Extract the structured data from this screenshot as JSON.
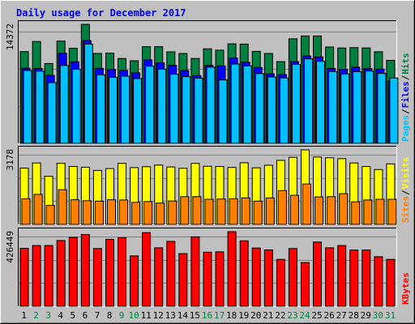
{
  "chart_data": {
    "title": "Daily usage for December 2017",
    "days": [
      "1",
      "2",
      "3",
      "4",
      "5",
      "6",
      "7",
      "8",
      "9",
      "10",
      "11",
      "12",
      "13",
      "14",
      "15",
      "16",
      "17",
      "18",
      "19",
      "20",
      "21",
      "22",
      "23",
      "24",
      "25",
      "26",
      "27",
      "28",
      "29",
      "30",
      "31"
    ],
    "weekend_days": [
      "2",
      "3",
      "9",
      "10",
      "16",
      "17",
      "23",
      "24",
      "30",
      "31"
    ],
    "panels": [
      {
        "type": "bar",
        "name": "hits-files-pages",
        "ymax_label": "14372",
        "ylim": [
          0,
          14372
        ],
        "legend": [
          {
            "label": "Pages",
            "color": "#00c0ff"
          },
          {
            "label": "/",
            "color": "#000000"
          },
          {
            "label": "Files",
            "color": "#0000ff"
          },
          {
            "label": "/",
            "color": "#000000"
          },
          {
            "label": "Hits",
            "color": "#008040"
          }
        ],
        "series": [
          {
            "name": "Hits",
            "color": "#008040",
            "values": [
              11080,
              12300,
              9640,
              12350,
              11480,
              14372,
              10850,
              10880,
              10250,
              9970,
              11670,
              11670,
              11050,
              10850,
              10250,
              11410,
              11250,
              12020,
              11990,
              11110,
              10850,
              9860,
              12620,
              12960,
              12960,
              11630,
              11520,
              11560,
              11520,
              11060,
              10020
            ]
          },
          {
            "name": "Files",
            "color": "#0000ff",
            "values": [
              9070,
              9040,
              8210,
              10880,
              9850,
              12420,
              9050,
              8920,
              8800,
              8520,
              10080,
              9720,
              9420,
              8800,
              8170,
              9420,
              9360,
              10300,
              9800,
              9160,
              8400,
              8310,
              9860,
              10550,
              10440,
              9040,
              8930,
              9200,
              9020,
              8960,
              7530
            ]
          },
          {
            "name": "Pages",
            "color": "#00c0ff",
            "values": [
              8800,
              8720,
              7330,
              9410,
              8960,
              11980,
              8290,
              7970,
              8110,
              7820,
              9320,
              8970,
              8350,
              8060,
              7880,
              9200,
              7660,
              9580,
              9360,
              8430,
              8020,
              7900,
              9530,
              10210,
              9900,
              8680,
              8380,
              8660,
              8730,
              8450,
              7900
            ]
          }
        ]
      },
      {
        "type": "bar",
        "name": "visits-sites",
        "ymax_label": "3178",
        "ylim": [
          0,
          3178
        ],
        "legend": [
          {
            "label": "Sites",
            "color": "#ff8000"
          },
          {
            "label": "/",
            "color": "#000000"
          },
          {
            "label": "Visits",
            "color": "#ffff00"
          }
        ],
        "series": [
          {
            "name": "Visits",
            "color": "#ffff00",
            "values": [
              2400,
              2620,
              2050,
              2600,
              2470,
              2440,
              2300,
              2380,
              2600,
              2420,
              2460,
              2530,
              2450,
              2390,
              2600,
              2480,
              2470,
              2430,
              2630,
              2410,
              2520,
              2730,
              2860,
              3178,
              2870,
              2840,
              2800,
              2620,
              2470,
              2340,
              2580
            ]
          },
          {
            "name": "Sites",
            "color": "#ff8000",
            "values": [
              1090,
              1280,
              810,
              1480,
              1050,
              1010,
              990,
              1050,
              1040,
              940,
              970,
              910,
              1000,
              1180,
              1180,
              1070,
              1080,
              1090,
              1130,
              990,
              1130,
              1440,
              1240,
              1720,
              1170,
              1180,
              1310,
              960,
              1040,
              1070,
              1070
            ]
          }
        ]
      },
      {
        "type": "bar",
        "name": "kbytes",
        "ymax_label": "426449",
        "ylim": [
          0,
          426449
        ],
        "legend": [
          {
            "label": "KBytes",
            "color": "#ff0000"
          }
        ],
        "series": [
          {
            "name": "KBytes",
            "color": "#ff0000",
            "values": [
              331000,
              347000,
              347000,
              376000,
              394000,
              410000,
              330000,
              383000,
              391000,
              288000,
              421000,
              334000,
              371000,
              301000,
              397000,
              309000,
              311000,
              426449,
              374000,
              333000,
              322000,
              268000,
              330000,
              250000,
              367000,
              334000,
              347000,
              321000,
              321000,
              283000,
              268000
            ]
          }
        ]
      }
    ]
  }
}
